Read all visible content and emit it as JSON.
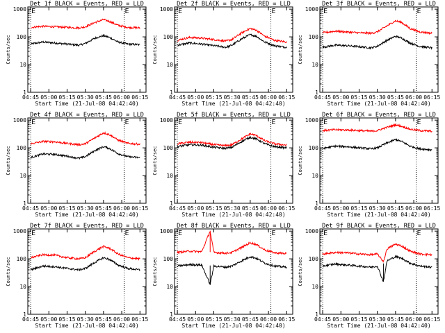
{
  "layout": {
    "rows": 3,
    "cols": 3
  },
  "shared": {
    "xlabel": "Start Time (21-Jul-08 04:42:40)",
    "ylabel": "Counts/sec",
    "x_ticks": [
      "04:45",
      "05:00",
      "05:15",
      "05:30",
      "05:45",
      "06:00",
      "06:15"
    ],
    "y_ticks": [
      "1",
      "10",
      "100",
      "1000"
    ],
    "marker_label": "E",
    "marker_times": [
      "04:45",
      "06:02"
    ],
    "colors": {
      "events": "#000000",
      "lld": "#ff0000",
      "marker": "#000000"
    }
  },
  "chart_data": [
    {
      "type": "line",
      "title": "Det 1f BLACK = Events, RED = LLD",
      "xlim": [
        "04:42:40",
        "06:20"
      ],
      "ylim": [
        1,
        1200
      ],
      "yscale": "log",
      "series": [
        {
          "name": "BLACK = Events",
          "color": "#000000",
          "x": [
            "04:45",
            "04:55",
            "05:05",
            "05:15",
            "05:25",
            "05:30",
            "05:38",
            "05:45",
            "05:50",
            "05:57",
            "06:05",
            "06:15"
          ],
          "values": [
            55,
            65,
            60,
            55,
            50,
            58,
            90,
            110,
            95,
            65,
            55,
            52
          ]
        },
        {
          "name": "RED = LLD",
          "color": "#ff0000",
          "x": [
            "04:45",
            "04:55",
            "05:05",
            "05:15",
            "05:25",
            "05:30",
            "05:38",
            "05:45",
            "05:50",
            "05:57",
            "06:05",
            "06:15"
          ],
          "values": [
            220,
            240,
            230,
            220,
            210,
            230,
            330,
            420,
            360,
            260,
            220,
            210
          ]
        }
      ]
    },
    {
      "type": "line",
      "title": "Det 2f BLACK = Events, RED = LLD",
      "xlim": [
        "04:42:40",
        "06:20"
      ],
      "ylim": [
        1,
        1200
      ],
      "yscale": "log",
      "series": [
        {
          "name": "BLACK = Events",
          "color": "#000000",
          "x": [
            "04:45",
            "04:55",
            "05:05",
            "05:15",
            "05:25",
            "05:30",
            "05:38",
            "05:45",
            "05:50",
            "05:57",
            "06:05",
            "06:15"
          ],
          "values": [
            50,
            60,
            55,
            48,
            42,
            50,
            85,
            120,
            105,
            65,
            48,
            42
          ]
        },
        {
          "name": "RED = LLD",
          "color": "#ff0000",
          "x": [
            "04:45",
            "04:55",
            "05:05",
            "05:15",
            "05:25",
            "05:30",
            "05:38",
            "05:45",
            "05:50",
            "05:57",
            "06:05",
            "06:15"
          ],
          "values": [
            75,
            95,
            90,
            80,
            70,
            80,
            140,
            200,
            175,
            105,
            75,
            65
          ]
        }
      ]
    },
    {
      "type": "line",
      "title": "Det 3f BLACK = Events, RED = LLD",
      "xlim": [
        "04:42:40",
        "06:20"
      ],
      "ylim": [
        1,
        1200
      ],
      "yscale": "log",
      "series": [
        {
          "name": "BLACK = Events",
          "color": "#000000",
          "x": [
            "04:45",
            "04:55",
            "05:05",
            "05:15",
            "05:25",
            "05:30",
            "05:38",
            "05:45",
            "05:50",
            "05:57",
            "06:05",
            "06:15"
          ],
          "values": [
            42,
            50,
            48,
            44,
            40,
            46,
            75,
            105,
            90,
            60,
            45,
            40
          ]
        },
        {
          "name": "RED = LLD",
          "color": "#ff0000",
          "x": [
            "04:45",
            "04:55",
            "05:05",
            "05:15",
            "05:25",
            "05:30",
            "05:38",
            "05:45",
            "05:50",
            "05:57",
            "06:05",
            "06:15"
          ],
          "values": [
            140,
            160,
            150,
            140,
            135,
            150,
            250,
            380,
            330,
            200,
            150,
            135
          ]
        }
      ]
    },
    {
      "type": "line",
      "title": "Det 4f BLACK = Events, RED = LLD",
      "xlim": [
        "04:42:40",
        "06:20"
      ],
      "ylim": [
        1,
        1200
      ],
      "yscale": "log",
      "series": [
        {
          "name": "BLACK = Events",
          "color": "#000000",
          "x": [
            "04:45",
            "04:55",
            "05:05",
            "05:15",
            "05:25",
            "05:30",
            "05:38",
            "05:45",
            "05:50",
            "05:57",
            "06:05",
            "06:15"
          ],
          "values": [
            45,
            60,
            58,
            50,
            42,
            48,
            80,
            110,
            95,
            62,
            48,
            44
          ]
        },
        {
          "name": "RED = LLD",
          "color": "#ff0000",
          "x": [
            "04:45",
            "04:55",
            "05:05",
            "05:15",
            "05:25",
            "05:30",
            "05:38",
            "05:45",
            "05:50",
            "05:57",
            "06:05",
            "06:15"
          ],
          "values": [
            140,
            170,
            165,
            145,
            130,
            140,
            230,
            350,
            300,
            190,
            145,
            135
          ]
        }
      ]
    },
    {
      "type": "line",
      "title": "Det 5f BLACK = Events, RED = LLD",
      "xlim": [
        "04:42:40",
        "06:20"
      ],
      "ylim": [
        1,
        1200
      ],
      "yscale": "log",
      "series": [
        {
          "name": "BLACK = Events",
          "color": "#000000",
          "x": [
            "04:45",
            "04:55",
            "05:05",
            "05:15",
            "05:25",
            "05:30",
            "05:38",
            "05:45",
            "05:50",
            "05:57",
            "06:05",
            "06:15"
          ],
          "values": [
            110,
            130,
            125,
            105,
            95,
            105,
            170,
            240,
            210,
            140,
            110,
            100
          ]
        },
        {
          "name": "RED = LLD",
          "color": "#ff0000",
          "x": [
            "04:45",
            "04:55",
            "05:05",
            "05:15",
            "05:25",
            "05:30",
            "05:38",
            "05:45",
            "05:50",
            "05:57",
            "06:05",
            "06:15"
          ],
          "values": [
            140,
            160,
            155,
            130,
            120,
            130,
            210,
            320,
            280,
            180,
            140,
            125
          ]
        }
      ]
    },
    {
      "type": "line",
      "title": "Det 6f BLACK = Events, RED = LLD",
      "xlim": [
        "04:42:40",
        "06:20"
      ],
      "ylim": [
        1,
        1200
      ],
      "yscale": "log",
      "series": [
        {
          "name": "BLACK = Events",
          "color": "#000000",
          "x": [
            "04:45",
            "04:55",
            "05:05",
            "05:15",
            "05:25",
            "05:30",
            "05:38",
            "05:45",
            "05:50",
            "05:57",
            "06:05",
            "06:15"
          ],
          "values": [
            95,
            115,
            110,
            100,
            92,
            100,
            150,
            200,
            170,
            115,
            92,
            85
          ]
        },
        {
          "name": "RED = LLD",
          "color": "#ff0000",
          "x": [
            "04:45",
            "04:55",
            "05:05",
            "05:15",
            "05:25",
            "05:30",
            "05:38",
            "05:45",
            "05:50",
            "05:57",
            "06:05",
            "06:15"
          ],
          "values": [
            420,
            450,
            440,
            420,
            400,
            420,
            550,
            680,
            600,
            470,
            420,
            400
          ]
        }
      ]
    },
    {
      "type": "line",
      "title": "Det 7f BLACK = Events, RED = LLD",
      "xlim": [
        "04:42:40",
        "06:20"
      ],
      "ylim": [
        1,
        1200
      ],
      "yscale": "log",
      "series": [
        {
          "name": "BLACK = Events",
          "color": "#000000",
          "x": [
            "04:45",
            "04:55",
            "05:05",
            "05:15",
            "05:25",
            "05:30",
            "05:38",
            "05:45",
            "05:50",
            "05:57",
            "06:05",
            "06:15"
          ],
          "values": [
            40,
            55,
            52,
            45,
            40,
            45,
            75,
            110,
            95,
            60,
            45,
            40
          ]
        },
        {
          "name": "RED = LLD",
          "color": "#ff0000",
          "x": [
            "04:45",
            "04:55",
            "05:05",
            "05:15",
            "05:25",
            "05:30",
            "05:38",
            "05:45",
            "05:50",
            "05:57",
            "06:05",
            "06:15"
          ],
          "values": [
            110,
            140,
            135,
            110,
            100,
            110,
            190,
            280,
            240,
            150,
            110,
            100
          ]
        }
      ]
    },
    {
      "type": "line",
      "title": "Det 8f BLACK = Events, RED = LLD",
      "xlim": [
        "04:42:40",
        "06:20"
      ],
      "ylim": [
        1,
        1200
      ],
      "yscale": "log",
      "series": [
        {
          "name": "BLACK = Events",
          "color": "#000000",
          "x": [
            "04:45",
            "04:55",
            "05:05",
            "05:12",
            "05:15",
            "05:25",
            "05:30",
            "05:38",
            "05:45",
            "05:50",
            "05:57",
            "06:05",
            "06:15"
          ],
          "values": [
            55,
            62,
            60,
            12,
            55,
            50,
            55,
            85,
            120,
            105,
            70,
            55,
            50
          ]
        },
        {
          "name": "RED = LLD",
          "color": "#ff0000",
          "x": [
            "04:45",
            "04:55",
            "05:05",
            "05:12",
            "05:15",
            "05:25",
            "05:30",
            "05:38",
            "05:45",
            "05:50",
            "05:57",
            "06:05",
            "06:15"
          ],
          "values": [
            170,
            190,
            180,
            1000,
            170,
            160,
            170,
            260,
            380,
            330,
            210,
            165,
            155
          ]
        }
      ]
    },
    {
      "type": "line",
      "title": "Det 9f BLACK = Events, RED = LLD",
      "xlim": [
        "04:42:40",
        "06:20"
      ],
      "ylim": [
        1,
        1200
      ],
      "yscale": "log",
      "series": [
        {
          "name": "BLACK = Events",
          "color": "#000000",
          "x": [
            "04:45",
            "04:55",
            "05:05",
            "05:15",
            "05:25",
            "05:30",
            "05:35",
            "05:38",
            "05:45",
            "05:50",
            "05:57",
            "06:05",
            "06:15"
          ],
          "values": [
            55,
            65,
            60,
            55,
            50,
            55,
            15,
            85,
            120,
            105,
            70,
            55,
            50
          ]
        },
        {
          "name": "RED = LLD",
          "color": "#ff0000",
          "x": [
            "04:45",
            "04:55",
            "05:05",
            "05:15",
            "05:25",
            "05:30",
            "05:35",
            "05:38",
            "05:45",
            "05:50",
            "05:57",
            "06:05",
            "06:15"
          ],
          "values": [
            150,
            170,
            165,
            150,
            140,
            150,
            80,
            230,
            340,
            290,
            190,
            150,
            140
          ]
        }
      ]
    }
  ]
}
